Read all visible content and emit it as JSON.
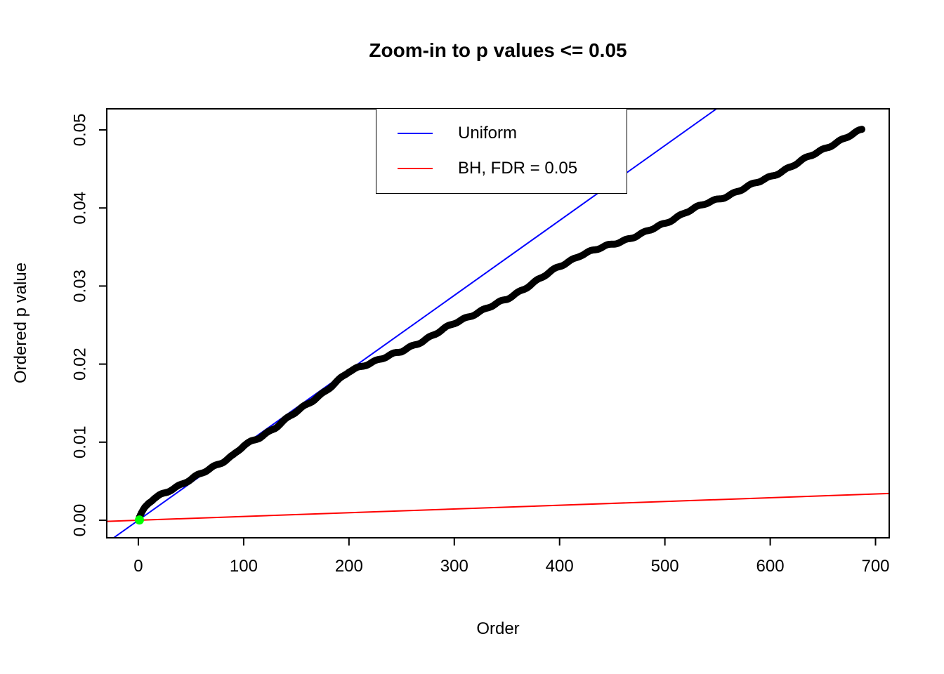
{
  "chart_data": {
    "type": "scatter",
    "title": "Zoom-in to p values <= 0.05",
    "xlabel": "Order",
    "ylabel": "Ordered p value",
    "xlim": [
      -30,
      713
    ],
    "ylim": [
      -0.00225,
      0.0527
    ],
    "xticks": [
      0,
      100,
      200,
      300,
      400,
      500,
      600,
      700
    ],
    "yticks": [
      0,
      0.01,
      0.02,
      0.03,
      0.04,
      0.05
    ],
    "ytick_labels": [
      "0.00",
      "0.01",
      "0.02",
      "0.03",
      "0.04",
      "0.05"
    ],
    "grid": false,
    "legend_position": "top-center",
    "series": {
      "points": {
        "name": "ordered-p-values",
        "color": "#000000",
        "marker_radius": 5,
        "n": 687,
        "anchors": [
          [
            1,
            0.0003
          ],
          [
            3,
            0.0008
          ],
          [
            6,
            0.0015
          ],
          [
            10,
            0.0022
          ],
          [
            15,
            0.0028
          ],
          [
            20,
            0.0032
          ],
          [
            30,
            0.0039
          ],
          [
            40,
            0.0045
          ],
          [
            50,
            0.0052
          ],
          [
            60,
            0.006
          ],
          [
            70,
            0.0068
          ],
          [
            80,
            0.0075
          ],
          [
            90,
            0.0083
          ],
          [
            100,
            0.0095
          ],
          [
            115,
            0.0106
          ],
          [
            130,
            0.0119
          ],
          [
            145,
            0.0134
          ],
          [
            160,
            0.0148
          ],
          [
            175,
            0.0163
          ],
          [
            190,
            0.0179
          ],
          [
            200,
            0.019
          ],
          [
            215,
            0.0199
          ],
          [
            230,
            0.0207
          ],
          [
            250,
            0.0216
          ],
          [
            270,
            0.023
          ],
          [
            300,
            0.0252
          ],
          [
            320,
            0.0265
          ],
          [
            350,
            0.0283
          ],
          [
            370,
            0.03
          ],
          [
            400,
            0.0325
          ],
          [
            420,
            0.034
          ],
          [
            440,
            0.0349
          ],
          [
            460,
            0.0358
          ],
          [
            480,
            0.0368
          ],
          [
            500,
            0.038
          ],
          [
            520,
            0.0395
          ],
          [
            540,
            0.0406
          ],
          [
            560,
            0.0416
          ],
          [
            580,
            0.0428
          ],
          [
            600,
            0.044
          ],
          [
            620,
            0.0453
          ],
          [
            640,
            0.0468
          ],
          [
            660,
            0.0482
          ],
          [
            675,
            0.0492
          ],
          [
            687,
            0.05
          ]
        ]
      },
      "lines": [
        {
          "name": "Uniform",
          "color": "#0000FF",
          "slope": 9.6e-05,
          "intercept": 0
        },
        {
          "name": "BH, FDR = 0.05",
          "color": "#FF0000",
          "slope": 4.8e-06,
          "intercept": 0
        }
      ],
      "highlight": {
        "name": "min-p-point",
        "color": "#00FF00",
        "x": 1,
        "y": 3e-05,
        "radius": 6.5
      }
    },
    "legend": {
      "entries": [
        {
          "label": "Uniform",
          "color": "#0000FF"
        },
        {
          "label": "BH, FDR = 0.05",
          "color": "#FF0000"
        }
      ]
    }
  }
}
